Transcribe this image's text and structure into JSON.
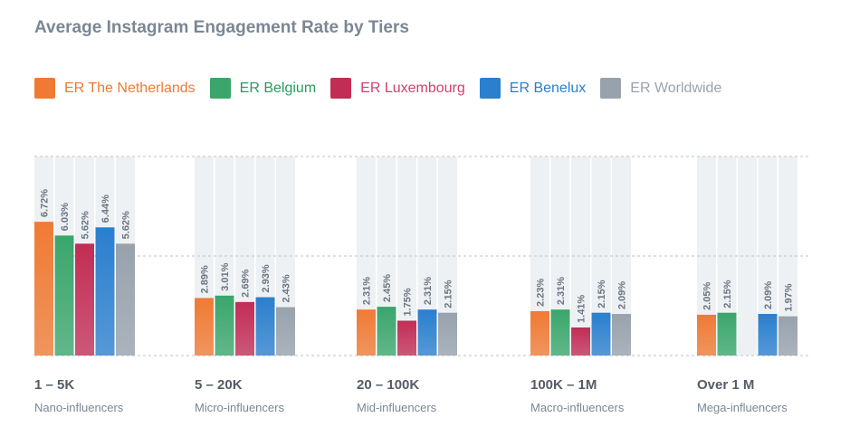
{
  "chart_data": {
    "type": "bar",
    "title": "Average Instagram Engagement Rate by Tiers",
    "categories": [
      "1 – 5K",
      "5 – 20K",
      "20 – 100K",
      "100K – 1M",
      "Over 1 M"
    ],
    "subcategories": [
      "Nano-influencers",
      "Micro-influencers",
      "Mid-influencers",
      "Macro-influencers",
      "Mega-influencers"
    ],
    "series": [
      {
        "name": "ER The Netherlands",
        "color": "#f07a34",
        "values": [
          6.72,
          2.89,
          2.31,
          2.23,
          2.05
        ]
      },
      {
        "name": "ER Belgium",
        "color": "#3aa66b",
        "values": [
          6.03,
          3.01,
          2.45,
          2.31,
          2.15
        ]
      },
      {
        "name": "ER Luxembourg",
        "color": "#c22d55",
        "values": [
          5.62,
          2.69,
          1.75,
          1.41,
          null
        ]
      },
      {
        "name": "ER Benelux",
        "color": "#2a7fce",
        "values": [
          6.44,
          2.93,
          2.31,
          2.15,
          2.09
        ]
      },
      {
        "name": "ER Worldwide",
        "color": "#98a2ad",
        "values": [
          5.62,
          2.43,
          2.15,
          2.09,
          1.97
        ]
      }
    ],
    "value_suffix": "%",
    "legend_text_colors": [
      "#f07a34",
      "#2a9a5e",
      "#d0426c",
      "#2a7fce",
      "#9aa3ad"
    ],
    "ylim": [
      0,
      10
    ],
    "grid": true,
    "legend_position": "top"
  }
}
